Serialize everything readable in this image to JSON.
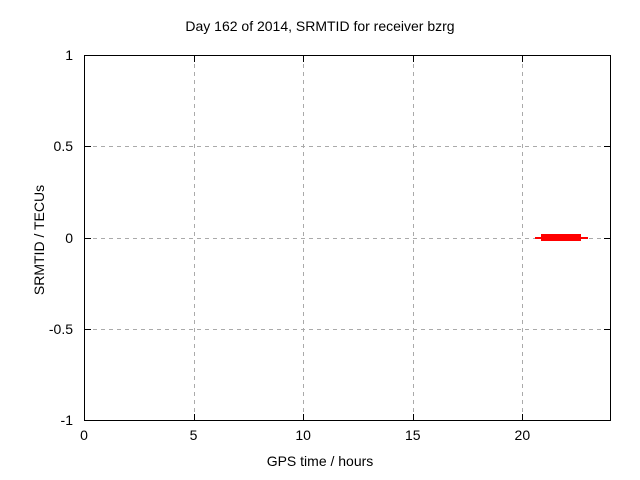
{
  "chart_data": {
    "type": "line",
    "title": "Day 162 of 2014, SRMTID for receiver bzrg",
    "xlabel": "GPS time / hours",
    "ylabel": "SRMTID / TECUs",
    "xlim": [
      0,
      24
    ],
    "ylim": [
      -1,
      1
    ],
    "xticks": [
      {
        "value": 0,
        "label": "0"
      },
      {
        "value": 5,
        "label": "5"
      },
      {
        "value": 10,
        "label": "10"
      },
      {
        "value": 15,
        "label": "15"
      },
      {
        "value": 20,
        "label": "20"
      }
    ],
    "yticks": [
      {
        "value": -1,
        "label": "-1"
      },
      {
        "value": -0.5,
        "label": "-0.5"
      },
      {
        "value": 0,
        "label": "0"
      },
      {
        "value": 0.5,
        "label": "0.5"
      },
      {
        "value": 1,
        "label": "1"
      }
    ],
    "grid": true,
    "grid_color": "#aaaaaa",
    "legend": "none",
    "series": [
      {
        "name": "SRMTID",
        "color": "#ff0000",
        "segments": [
          {
            "x1": 20.6,
            "x2": 23.0,
            "y": 0,
            "style": "thin"
          },
          {
            "x1": 20.85,
            "x2": 22.7,
            "y": 0,
            "style": "thick"
          }
        ]
      }
    ]
  }
}
